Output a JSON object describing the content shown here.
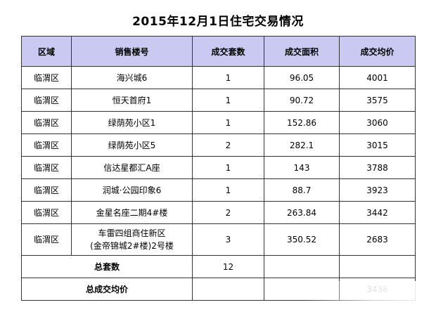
{
  "title": "2015年12月1日住宅交易情况",
  "headers": [
    "区域",
    "销售楼号",
    "成交套数",
    "成交面积",
    "成交均价"
  ],
  "rows": [
    {
      "area": "临渭区",
      "building": "海兴城6",
      "units": "1",
      "size": "96.05",
      "price": "4001"
    },
    {
      "area": "临渭区",
      "building": "恒天首府1",
      "units": "1",
      "size": "90.72",
      "price": "3575"
    },
    {
      "area": "临渭区",
      "building": "绿荫苑小区1",
      "units": "1",
      "size": "152.86",
      "price": "3060"
    },
    {
      "area": "临渭区",
      "building": "绿荫苑小区5",
      "units": "2",
      "size": "282.1",
      "price": "3015"
    },
    {
      "area": "临渭区",
      "building": "信达星都汇A座",
      "units": "1",
      "size": "143",
      "price": "3788"
    },
    {
      "area": "临渭区",
      "building": "润城·公园印象6",
      "units": "1",
      "size": "88.7",
      "price": "3923"
    },
    {
      "area": "临渭区",
      "building": "金星名座二期4#楼",
      "units": "2",
      "size": "263.84",
      "price": "3442"
    },
    {
      "area": "临渭区",
      "building_line1": "车雷四组商住新区",
      "building_line2": "(金帝锦城2#楼)2号楼",
      "units": "3",
      "size": "350.52",
      "price": "2683"
    }
  ],
  "summary": {
    "total_units_label": "总套数",
    "total_units_value": "12",
    "avg_price_label": "总成交均价",
    "avg_price_value": "3436"
  }
}
